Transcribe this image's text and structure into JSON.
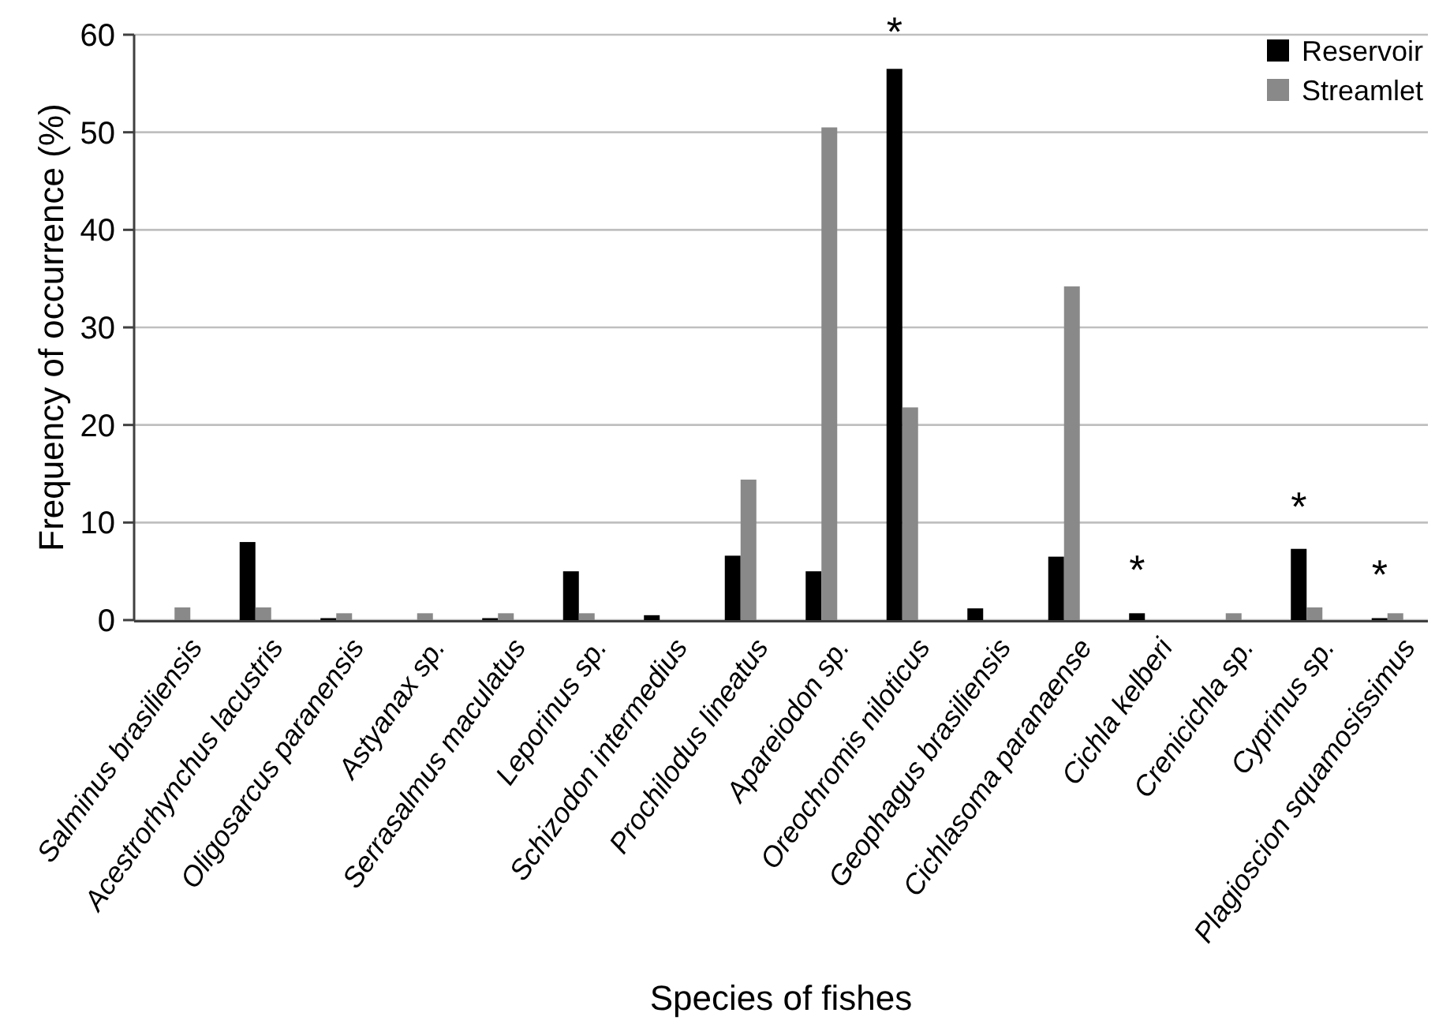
{
  "chart_data": {
    "type": "bar",
    "xlabel": "Species of fishes",
    "ylabel": "Frequency of occurrence (%)",
    "categories": [
      "Salminus brasiliensis",
      "Acestrorhynchus lacustris",
      "Oligosarcus paranensis",
      "Astyanax sp.",
      "Serrasalmus maculatus",
      "Leporinus sp.",
      "Schizodon intermedius",
      "Prochilodus lineatus",
      "Apareiodon sp.",
      "Oreochromis niloticus",
      "Geophagus brasiliensis",
      "Cichlasoma paranaense",
      "Cichla kelberi",
      "Crenicichla sp.",
      "Cyprinus sp.",
      "Plagioscion squamosissimus"
    ],
    "series": [
      {
        "name": "Reservoir",
        "color": "#000000",
        "values": [
          0,
          8.0,
          0.2,
          0,
          0.2,
          5.0,
          0.5,
          6.6,
          5.0,
          56.5,
          1.2,
          6.5,
          0.7,
          0,
          7.3,
          0.2
        ]
      },
      {
        "name": "Streamlet",
        "color": "#898989",
        "values": [
          1.3,
          1.3,
          0.7,
          0.7,
          0.7,
          0.7,
          0,
          14.4,
          50.5,
          21.8,
          0,
          34.2,
          0,
          0.7,
          1.3,
          0.7
        ]
      }
    ],
    "ylim": [
      0,
      60
    ],
    "yticks": [
      0,
      10,
      20,
      30,
      40,
      50,
      60
    ],
    "grid": "y",
    "legend": "top right",
    "annotations": [
      "*",
      "*",
      "*",
      "*"
    ]
  }
}
